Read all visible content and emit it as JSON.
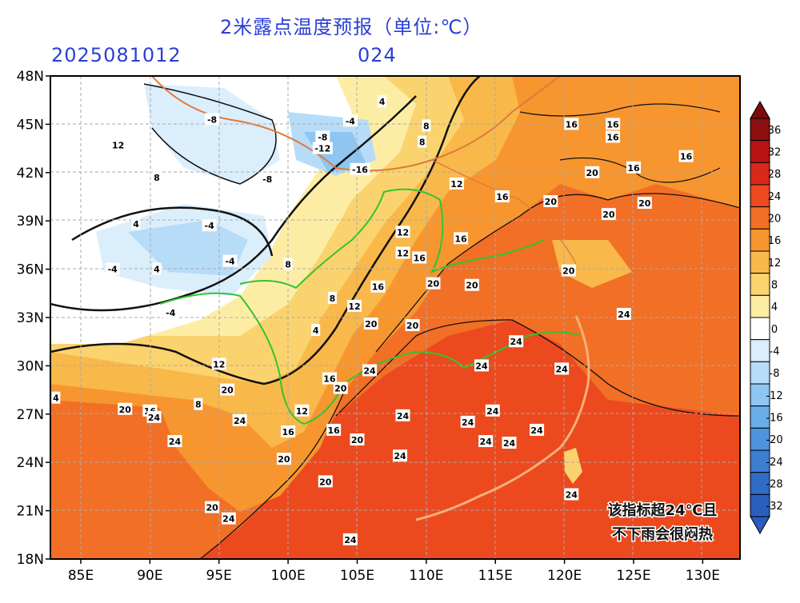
{
  "title": "2米露点温度预报（单位:℃）",
  "timestamp": "2025081012",
  "forecast_hour": "024",
  "lat_labels": [
    "48N",
    "45N",
    "42N",
    "39N",
    "36N",
    "33N",
    "30N",
    "27N",
    "24N",
    "21N",
    "18N"
  ],
  "lon_labels": [
    "85E",
    "90E",
    "95E",
    "100E",
    "105E",
    "110E",
    "115E",
    "120E",
    "125E",
    "130E"
  ],
  "colorbar": {
    "labels": [
      "36",
      "32",
      "28",
      "24",
      "20",
      "16",
      "12",
      "8",
      "4",
      "0",
      "-4",
      "-8",
      "-12",
      "-16",
      "-20",
      "-24",
      "-28",
      "-32"
    ],
    "colors": [
      "#8b0f0f",
      "#b81414",
      "#d8281a",
      "#ec4a1e",
      "#f26f26",
      "#f7962f",
      "#f9b84a",
      "#fbd36e",
      "#fdeda4",
      "#ffffff",
      "#dbeefc",
      "#b7dcf8",
      "#8ec5f1",
      "#69aee8",
      "#4c94dd",
      "#3b7fd2",
      "#2f6cc6",
      "#2c5fbd"
    ]
  },
  "contour_labels": [
    {
      "text": "-8",
      "lon": 94.5,
      "lat": 45.3
    },
    {
      "text": "-4",
      "lon": 104.5,
      "lat": 45.2
    },
    {
      "text": "-8",
      "lon": 102.5,
      "lat": 44.2
    },
    {
      "text": "-12",
      "lon": 102.5,
      "lat": 43.5
    },
    {
      "text": "-16",
      "lon": 105.2,
      "lat": 42.2
    },
    {
      "text": "-8",
      "lon": 98.5,
      "lat": 41.6
    },
    {
      "text": "-4",
      "lon": 94.3,
      "lat": 38.7
    },
    {
      "text": "-4",
      "lon": 87.3,
      "lat": 36.0
    },
    {
      "text": "-4",
      "lon": 91.5,
      "lat": 33.3
    },
    {
      "text": "-4",
      "lon": 95.8,
      "lat": 36.5
    },
    {
      "text": "12",
      "lon": 87.7,
      "lat": 43.7
    },
    {
      "text": "12",
      "lon": 112.2,
      "lat": 41.3
    },
    {
      "text": "12",
      "lon": 108.3,
      "lat": 38.3
    },
    {
      "text": "12",
      "lon": 108.3,
      "lat": 37.0
    },
    {
      "text": "12",
      "lon": 104.8,
      "lat": 33.7
    },
    {
      "text": "12",
      "lon": 95.0,
      "lat": 30.1
    },
    {
      "text": "12",
      "lon": 101.0,
      "lat": 27.2
    },
    {
      "text": "16",
      "lon": 120.5,
      "lat": 45.0
    },
    {
      "text": "16",
      "lon": 123.5,
      "lat": 45.0
    },
    {
      "text": "16",
      "lon": 123.5,
      "lat": 44.2
    },
    {
      "text": "16",
      "lon": 125.0,
      "lat": 42.3
    },
    {
      "text": "16",
      "lon": 128.8,
      "lat": 43.0
    },
    {
      "text": "16",
      "lon": 115.5,
      "lat": 40.5
    },
    {
      "text": "16",
      "lon": 112.5,
      "lat": 37.9
    },
    {
      "text": "16",
      "lon": 109.5,
      "lat": 36.7
    },
    {
      "text": "16",
      "lon": 106.5,
      "lat": 34.9
    },
    {
      "text": "16",
      "lon": 103.0,
      "lat": 29.2
    },
    {
      "text": "16",
      "lon": 103.3,
      "lat": 26.0
    },
    {
      "text": "16",
      "lon": 100.0,
      "lat": 25.9
    },
    {
      "text": "20",
      "lon": 122.0,
      "lat": 42.0
    },
    {
      "text": "20",
      "lon": 119.0,
      "lat": 40.2
    },
    {
      "text": "20",
      "lon": 123.2,
      "lat": 39.4
    },
    {
      "text": "20",
      "lon": 125.8,
      "lat": 40.1
    },
    {
      "text": "20",
      "lon": 120.3,
      "lat": 35.9
    },
    {
      "text": "20",
      "lon": 110.5,
      "lat": 35.1
    },
    {
      "text": "20",
      "lon": 113.3,
      "lat": 35.0
    },
    {
      "text": "20",
      "lon": 106.0,
      "lat": 32.6
    },
    {
      "text": "20",
      "lon": 109.0,
      "lat": 32.5
    },
    {
      "text": "20",
      "lon": 103.8,
      "lat": 28.6
    },
    {
      "text": "20",
      "lon": 105.0,
      "lat": 25.4
    },
    {
      "text": "20",
      "lon": 99.7,
      "lat": 24.2
    },
    {
      "text": "20",
      "lon": 102.7,
      "lat": 22.8
    },
    {
      "text": "20",
      "lon": 94.5,
      "lat": 21.2
    },
    {
      "text": "20",
      "lon": 88.2,
      "lat": 27.3
    },
    {
      "text": "16",
      "lon": 90.0,
      "lat": 27.2
    },
    {
      "text": "20",
      "lon": 95.6,
      "lat": 28.5
    },
    {
      "text": "24",
      "lon": 124.3,
      "lat": 33.2
    },
    {
      "text": "24",
      "lon": 116.5,
      "lat": 31.5
    },
    {
      "text": "24",
      "lon": 105.9,
      "lat": 29.7
    },
    {
      "text": "24",
      "lon": 114.0,
      "lat": 30.0
    },
    {
      "text": "24",
      "lon": 119.8,
      "lat": 29.8
    },
    {
      "text": "24",
      "lon": 108.3,
      "lat": 26.9
    },
    {
      "text": "24",
      "lon": 113.0,
      "lat": 26.5
    },
    {
      "text": "24",
      "lon": 114.8,
      "lat": 27.2
    },
    {
      "text": "24",
      "lon": 118.0,
      "lat": 26.0
    },
    {
      "text": "24",
      "lon": 114.3,
      "lat": 25.3
    },
    {
      "text": "24",
      "lon": 116.0,
      "lat": 25.2
    },
    {
      "text": "24",
      "lon": 108.1,
      "lat": 24.4
    },
    {
      "text": "24",
      "lon": 120.5,
      "lat": 22.0
    },
    {
      "text": "24",
      "lon": 90.3,
      "lat": 26.8
    },
    {
      "text": "24",
      "lon": 91.8,
      "lat": 25.3
    },
    {
      "text": "24",
      "lon": 96.5,
      "lat": 26.6
    },
    {
      "text": "24",
      "lon": 95.7,
      "lat": 20.5
    },
    {
      "text": "24",
      "lon": 104.5,
      "lat": 19.2
    },
    {
      "text": "4",
      "lon": 102.0,
      "lat": 32.2
    },
    {
      "text": "4",
      "lon": 90.5,
      "lat": 36.0
    },
    {
      "text": "8",
      "lon": 103.2,
      "lat": 34.2
    },
    {
      "text": "8",
      "lon": 100.0,
      "lat": 36.3
    },
    {
      "text": "8",
      "lon": 110.0,
      "lat": 44.9
    },
    {
      "text": "8",
      "lon": 109.7,
      "lat": 43.9
    },
    {
      "text": "4",
      "lon": 106.8,
      "lat": 46.4
    },
    {
      "text": "8",
      "lon": 90.5,
      "lat": 41.7
    },
    {
      "text": "4",
      "lon": 89.0,
      "lat": 38.8
    },
    {
      "text": "8",
      "lon": 93.5,
      "lat": 27.6
    },
    {
      "text": "4",
      "lon": 83.2,
      "lat": 28.0
    }
  ],
  "annotation": {
    "line1": "该指标超24℃且",
    "line2": "不下雨会很闷热"
  }
}
